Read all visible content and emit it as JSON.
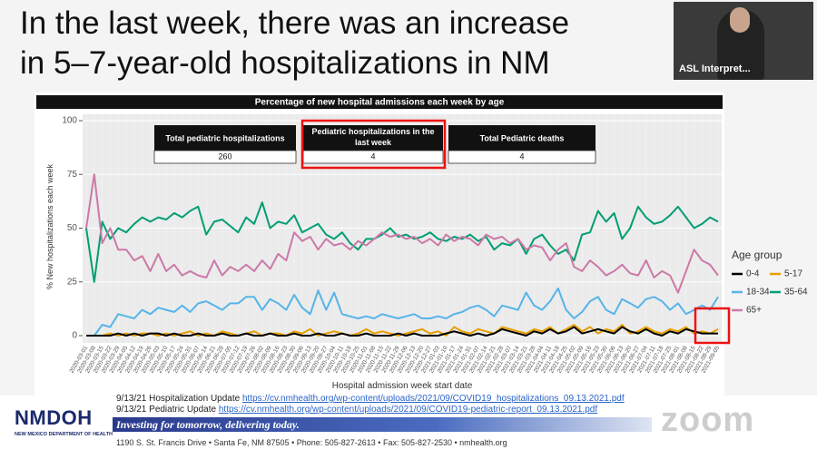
{
  "slide": {
    "title_lines": [
      "In the last week, there was an increase",
      "in 5–7-year-old hospitalizations in NM"
    ],
    "asl_label": "ASL Interpret..."
  },
  "chart_data": {
    "type": "line",
    "title": "Percentage of new hospital admissions each week by age",
    "x_label": "Hospital admission week start date",
    "y_label": "% New hospitalizations each week",
    "legend_title": "Age group",
    "legend_position": "right",
    "grid": true,
    "ylim": [
      0,
      100
    ],
    "yticks": [
      0,
      25,
      50,
      75,
      100
    ],
    "categories": [
      "2020-03-01",
      "2020-03-08",
      "2020-03-15",
      "2020-03-22",
      "2020-03-29",
      "2020-04-05",
      "2020-04-12",
      "2020-04-19",
      "2020-04-26",
      "2020-05-03",
      "2020-05-10",
      "2020-05-17",
      "2020-05-24",
      "2020-05-31",
      "2020-06-07",
      "2020-06-14",
      "2020-06-21",
      "2020-06-28",
      "2020-07-05",
      "2020-07-12",
      "2020-07-19",
      "2020-07-26",
      "2020-08-02",
      "2020-08-09",
      "2020-08-16",
      "2020-08-23",
      "2020-08-30",
      "2020-09-06",
      "2020-09-13",
      "2020-09-20",
      "2020-09-27",
      "2020-10-04",
      "2020-10-11",
      "2020-10-18",
      "2020-10-25",
      "2020-11-01",
      "2020-11-08",
      "2020-11-15",
      "2020-11-22",
      "2020-11-29",
      "2020-12-06",
      "2020-12-13",
      "2020-12-20",
      "2020-12-27",
      "2021-01-03",
      "2021-01-10",
      "2021-01-17",
      "2021-01-24",
      "2021-01-31",
      "2021-02-07",
      "2021-02-14",
      "2021-02-21",
      "2021-02-28",
      "2021-03-07",
      "2021-03-14",
      "2021-03-21",
      "2021-03-28",
      "2021-04-04",
      "2021-04-11",
      "2021-04-18",
      "2021-04-25",
      "2021-05-02",
      "2021-05-09",
      "2021-05-16",
      "2021-05-23",
      "2021-05-30",
      "2021-06-06",
      "2021-06-13",
      "2021-06-20",
      "2021-06-27",
      "2021-07-04",
      "2021-07-11",
      "2021-07-18",
      "2021-07-25",
      "2021-08-01",
      "2021-08-08",
      "2021-08-15",
      "2021-08-22",
      "2021-08-29",
      "2021-09-05"
    ],
    "series": [
      {
        "name": "0-4",
        "color": "#000000",
        "values": [
          0,
          0,
          0,
          0,
          1,
          0,
          1,
          0,
          1,
          1,
          0,
          1,
          0,
          0,
          1,
          0,
          0,
          1,
          0,
          0,
          1,
          0,
          0,
          1,
          0,
          0,
          1,
          0,
          0,
          1,
          0,
          0,
          1,
          0,
          0,
          1,
          0,
          0,
          0,
          1,
          0,
          1,
          0,
          0,
          0,
          1,
          2,
          1,
          0,
          1,
          0,
          1,
          3,
          2,
          1,
          0,
          2,
          1,
          3,
          1,
          2,
          4,
          1,
          2,
          3,
          2,
          1,
          4,
          2,
          1,
          3,
          1,
          0,
          2,
          1,
          3,
          2,
          1,
          1,
          1
        ]
      },
      {
        "name": "5-17",
        "color": "#e69f00",
        "values": [
          0,
          0,
          0,
          1,
          0,
          1,
          0,
          1,
          1,
          0,
          1,
          0,
          1,
          2,
          0,
          1,
          0,
          2,
          1,
          0,
          1,
          2,
          0,
          1,
          1,
          0,
          2,
          1,
          3,
          0,
          1,
          2,
          1,
          0,
          1,
          3,
          1,
          2,
          1,
          0,
          1,
          2,
          3,
          1,
          2,
          0,
          4,
          2,
          1,
          3,
          2,
          1,
          4,
          3,
          2,
          1,
          3,
          2,
          4,
          1,
          3,
          5,
          2,
          4,
          1,
          3,
          2,
          5,
          1,
          2,
          4,
          2,
          1,
          3,
          2,
          4,
          1,
          2,
          1,
          3
        ]
      },
      {
        "name": "18-34",
        "color": "#56b4e9",
        "values": [
          0,
          0,
          5,
          4,
          10,
          9,
          8,
          12,
          10,
          13,
          12,
          11,
          14,
          11,
          15,
          16,
          14,
          12,
          15,
          15,
          18,
          18,
          12,
          17,
          15,
          12,
          19,
          13,
          10,
          21,
          12,
          20,
          10,
          9,
          8,
          9,
          8,
          10,
          9,
          8,
          9,
          10,
          8,
          8,
          9,
          8,
          10,
          11,
          13,
          14,
          12,
          9,
          14,
          13,
          12,
          20,
          14,
          12,
          16,
          22,
          12,
          8,
          11,
          16,
          18,
          12,
          10,
          17,
          15,
          13,
          17,
          18,
          16,
          12,
          15,
          10,
          12,
          14,
          12,
          18
        ]
      },
      {
        "name": "35-64",
        "color": "#009e73",
        "values": [
          50,
          25,
          53,
          45,
          50,
          48,
          52,
          55,
          53,
          55,
          54,
          57,
          55,
          58,
          60,
          47,
          53,
          54,
          51,
          48,
          55,
          52,
          62,
          50,
          53,
          52,
          56,
          48,
          50,
          52,
          47,
          45,
          48,
          43,
          40,
          45,
          45,
          47,
          50,
          46,
          47,
          45,
          46,
          48,
          45,
          44,
          46,
          45,
          47,
          44,
          46,
          40,
          43,
          42,
          45,
          38,
          45,
          47,
          42,
          38,
          40,
          35,
          47,
          48,
          58,
          53,
          57,
          45,
          50,
          60,
          55,
          52,
          53,
          56,
          60,
          55,
          50,
          52,
          55,
          53
        ]
      },
      {
        "name": "65+",
        "color": "#cc79a7",
        "values": [
          50,
          75,
          43,
          50,
          40,
          40,
          35,
          37,
          30,
          38,
          30,
          33,
          28,
          30,
          28,
          27,
          35,
          28,
          32,
          30,
          33,
          30,
          35,
          31,
          38,
          35,
          48,
          44,
          46,
          40,
          45,
          42,
          43,
          40,
          44,
          42,
          45,
          48,
          46,
          47,
          45,
          46,
          43,
          45,
          42,
          47,
          44,
          46,
          45,
          42,
          47,
          45,
          46,
          43,
          45,
          40,
          42,
          41,
          35,
          40,
          43,
          32,
          30,
          35,
          32,
          28,
          30,
          33,
          29,
          28,
          35,
          27,
          30,
          28,
          20,
          30,
          40,
          35,
          33,
          28
        ]
      }
    ]
  },
  "stats_table": {
    "headers": [
      "Total pediatric hospitalizations",
      "Pediatric hospitalizations in the last week",
      "Total Pediatric deaths"
    ],
    "values": [
      260,
      4,
      4
    ]
  },
  "footer": {
    "logo": "NMDOH",
    "logo_subtitle": "NEW MEXICO DEPARTMENT OF HEALTH",
    "references": [
      {
        "label": "9/13/21 Hospitalization Update",
        "url": "https://cv.nmhealth.org/wp-content/uploads/2021/09/COVID19_hospitalizations_09.13.2021.pdf"
      },
      {
        "label": "9/13/21 Pediatric Update",
        "url": "https://cv.nmhealth.org/wp-content/uploads/2021/09/COVID19-pediatric-report_09.13.2021.pdf"
      }
    ],
    "tagline": "Investing for tomorrow, delivering today.",
    "address": "1190 S. St. Francis Drive • Santa Fe, NM 87505 • Phone: 505-827-2613 • Fax: 505-827-2530 • nmhealth.org",
    "watermark": "zoom"
  }
}
